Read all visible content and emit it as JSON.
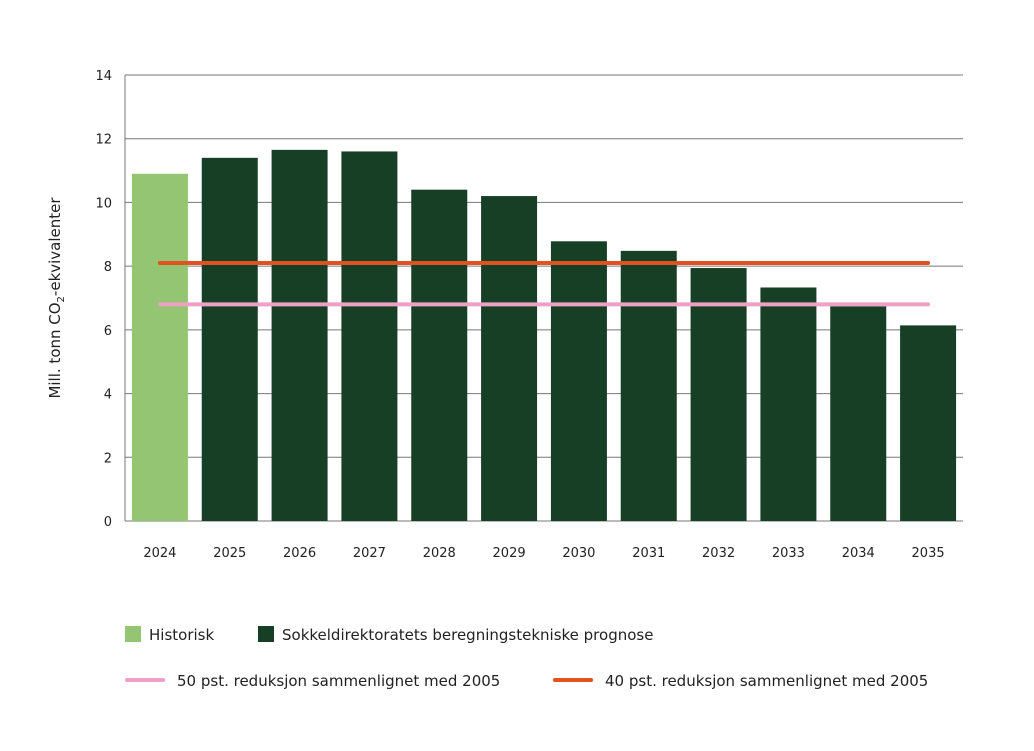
{
  "chart_data": {
    "type": "bar",
    "title": "",
    "xlabel": "",
    "ylabel": "Mill. tonn CO₂-ekvivalenter",
    "ylim": [
      0,
      14
    ],
    "yticks": [
      0,
      2,
      4,
      6,
      8,
      10,
      12,
      14
    ],
    "grid": "horizontal",
    "legend_position": "bottom",
    "categories": [
      "2024",
      "2025",
      "2026",
      "2027",
      "2028",
      "2029",
      "2030",
      "2031",
      "2032",
      "2033",
      "2034",
      "2035"
    ],
    "series": [
      {
        "name": "Historisk",
        "color": "#93c572",
        "values": [
          10.9,
          null,
          null,
          null,
          null,
          null,
          null,
          null,
          null,
          null,
          null,
          null
        ]
      },
      {
        "name": "Sokkeldirektoratets beregningstekniske prognose",
        "color": "#173f26",
        "values": [
          null,
          11.4,
          11.65,
          11.6,
          10.4,
          10.2,
          8.78,
          8.48,
          7.94,
          7.33,
          6.74,
          6.14
        ]
      }
    ],
    "reference_lines": [
      {
        "name": "50 pst. reduksjon sammenlignet med 2005",
        "color": "#eea0c5",
        "value": 6.8
      },
      {
        "name": "40 pst. reduksjon sammenlignet med 2005",
        "color": "#e0521f",
        "value": 8.1
      }
    ]
  }
}
